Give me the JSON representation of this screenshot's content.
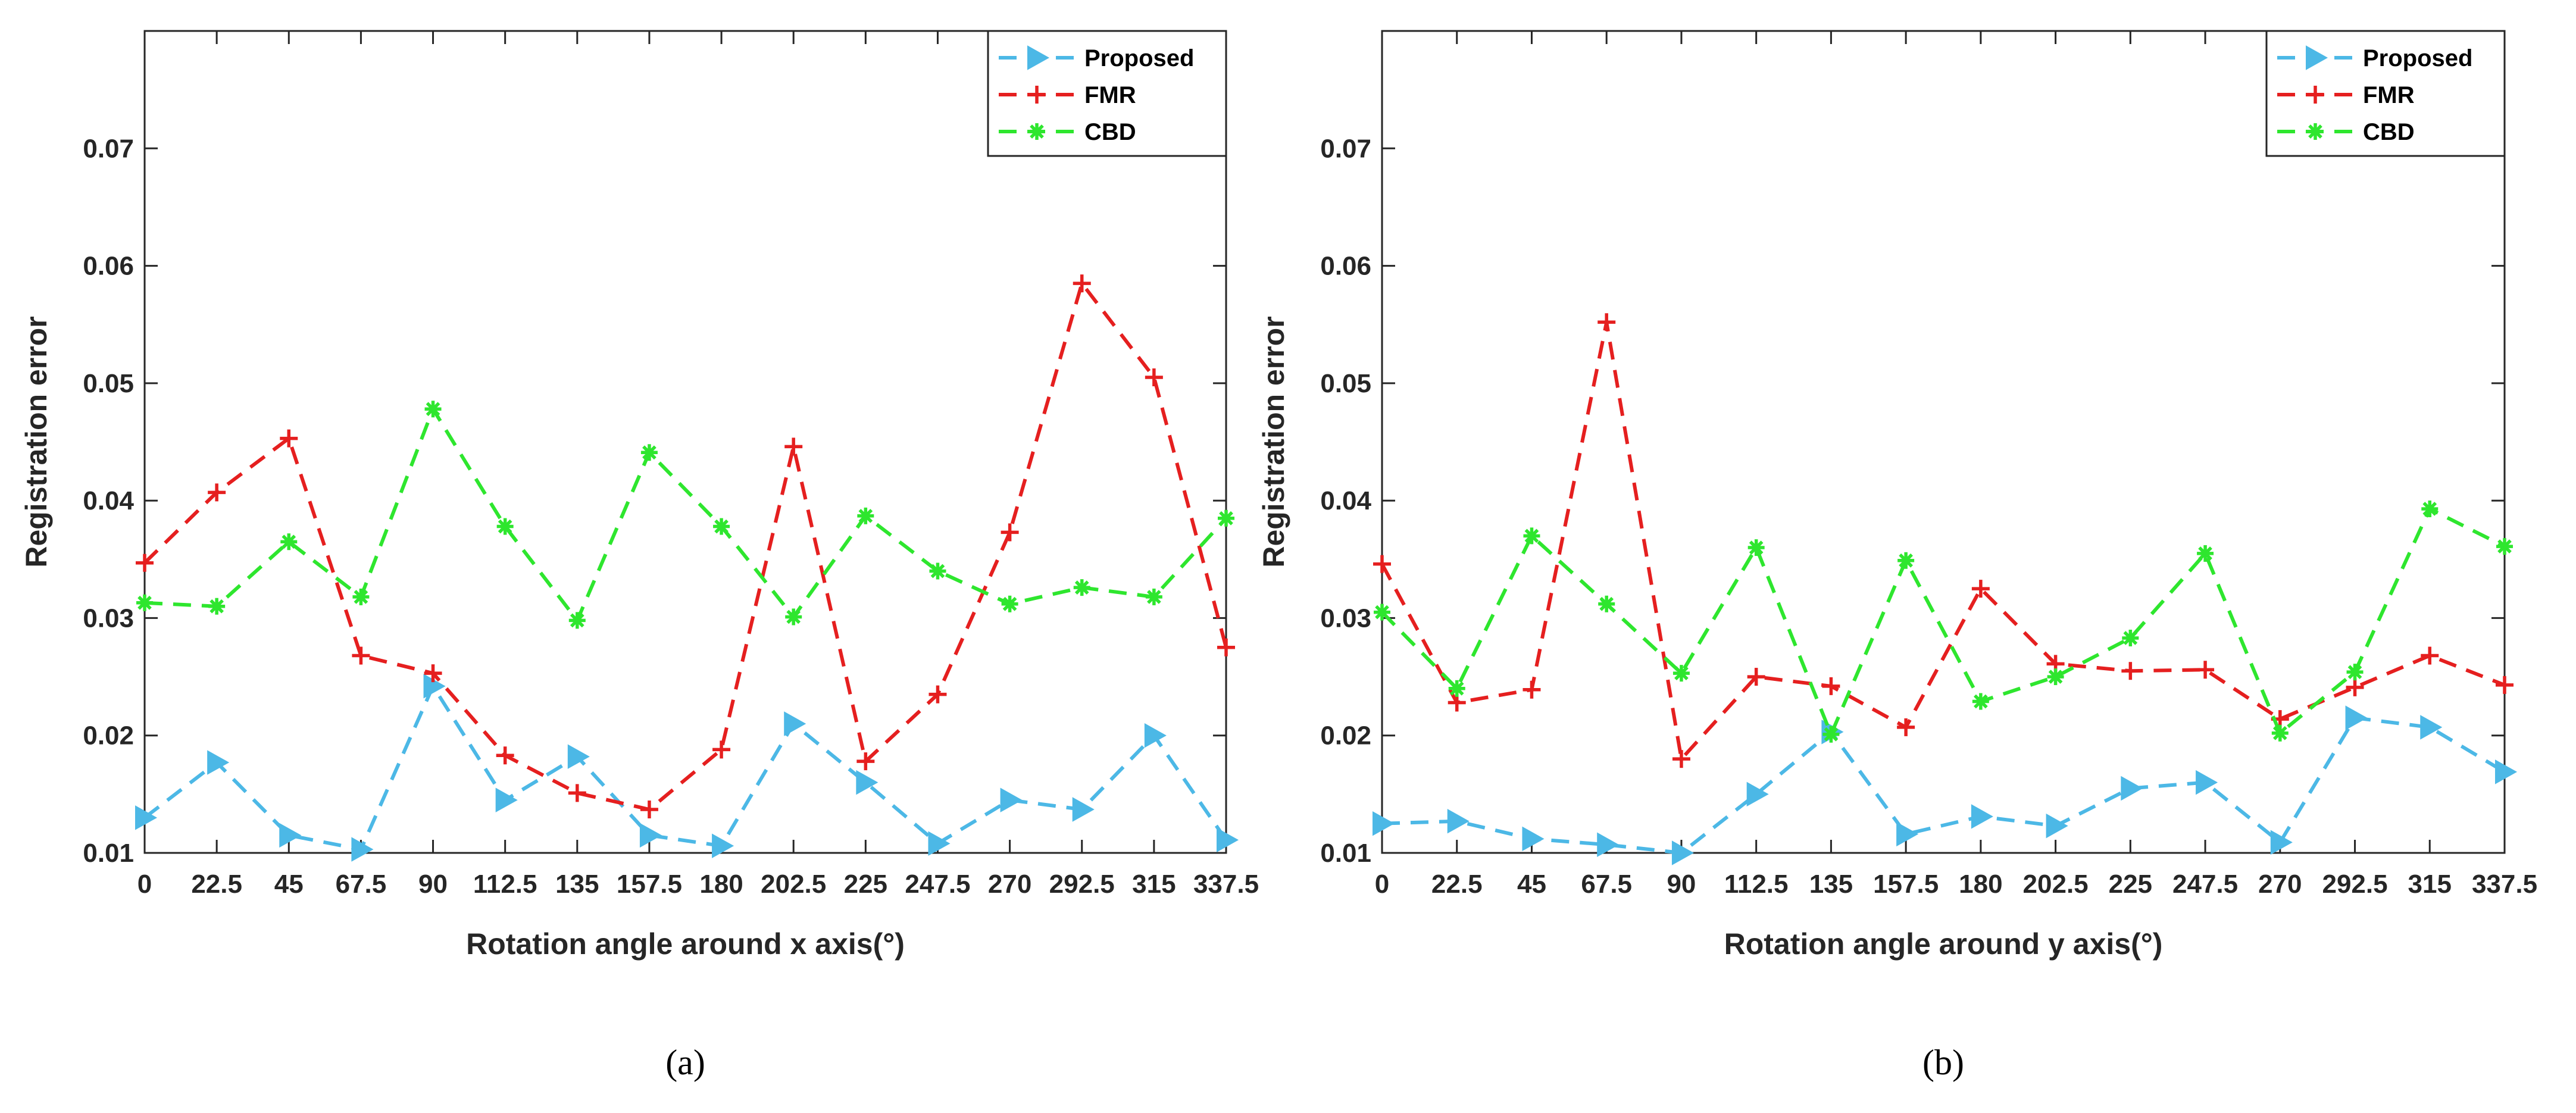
{
  "colors": {
    "proposed": "#4cb8e6",
    "fmr": "#e51f1f",
    "cbd": "#2ee62e",
    "axis": "#262626"
  },
  "chart_data": [
    {
      "type": "line",
      "caption": "(a)",
      "xlabel": "Rotation angle around x axis(°)",
      "ylabel": "Registration error",
      "categories": [
        "0",
        "22.5",
        "45",
        "67.5",
        "90",
        "112.5",
        "135",
        "157.5",
        "180",
        "202.5",
        "225",
        "247.5",
        "270",
        "292.5",
        "315",
        "337.5"
      ],
      "x": [
        0,
        22.5,
        45,
        67.5,
        90,
        112.5,
        135,
        157.5,
        180,
        202.5,
        225,
        247.5,
        270,
        292.5,
        315,
        337.5
      ],
      "xlim": [
        0,
        337.5
      ],
      "ylim": [
        0.01,
        0.08
      ],
      "yticks": [
        "0.01",
        "0.02",
        "0.03",
        "0.04",
        "0.05",
        "0.06",
        "0.07"
      ],
      "legend_position": "top-right",
      "series": [
        {
          "name": "Proposed",
          "marker": "triangle-right",
          "values": [
            0.013,
            0.0177,
            0.0115,
            0.0103,
            0.0242,
            0.0145,
            0.0182,
            0.0115,
            0.0106,
            0.021,
            0.016,
            0.0108,
            0.0145,
            0.0137,
            0.02,
            0.0111
          ]
        },
        {
          "name": "FMR",
          "marker": "plus",
          "values": [
            0.0347,
            0.0407,
            0.0453,
            0.0268,
            0.0253,
            0.0183,
            0.0151,
            0.0137,
            0.0188,
            0.0446,
            0.0178,
            0.0235,
            0.0373,
            0.0585,
            0.0505,
            0.0275
          ]
        },
        {
          "name": "CBD",
          "marker": "star",
          "values": [
            0.0313,
            0.031,
            0.0365,
            0.0318,
            0.0478,
            0.0378,
            0.0298,
            0.0441,
            0.0378,
            0.0301,
            0.0387,
            0.034,
            0.0312,
            0.0326,
            0.0318,
            0.0385
          ]
        }
      ]
    },
    {
      "type": "line",
      "caption": "(b)",
      "xlabel": "Rotation angle around y axis(°)",
      "ylabel": "Registration error",
      "categories": [
        "0",
        "22.5",
        "45",
        "67.5",
        "90",
        "112.5",
        "135",
        "157.5",
        "180",
        "202.5",
        "225",
        "247.5",
        "270",
        "292.5",
        "315",
        "337.5"
      ],
      "x": [
        0,
        22.5,
        45,
        67.5,
        90,
        112.5,
        135,
        157.5,
        180,
        202.5,
        225,
        247.5,
        270,
        292.5,
        315,
        337.5
      ],
      "xlim": [
        0,
        337.5
      ],
      "ylim": [
        0.01,
        0.08
      ],
      "yticks": [
        "0.01",
        "0.02",
        "0.03",
        "0.04",
        "0.05",
        "0.06",
        "0.07"
      ],
      "legend_position": "top-right",
      "series": [
        {
          "name": "Proposed",
          "marker": "triangle-right",
          "values": [
            0.0125,
            0.0127,
            0.0112,
            0.0107,
            0.01,
            0.015,
            0.0203,
            0.0116,
            0.0131,
            0.0123,
            0.0155,
            0.016,
            0.0109,
            0.0215,
            0.0207,
            0.0169
          ]
        },
        {
          "name": "FMR",
          "marker": "plus",
          "values": [
            0.0346,
            0.0228,
            0.0239,
            0.0552,
            0.018,
            0.025,
            0.0242,
            0.0207,
            0.0325,
            0.0261,
            0.0255,
            0.0256,
            0.0214,
            0.0241,
            0.0268,
            0.0243
          ]
        },
        {
          "name": "CBD",
          "marker": "star",
          "values": [
            0.0305,
            0.024,
            0.037,
            0.0312,
            0.0253,
            0.036,
            0.0201,
            0.0349,
            0.0229,
            0.025,
            0.0283,
            0.0355,
            0.0202,
            0.0254,
            0.0393,
            0.0361
          ]
        }
      ]
    }
  ]
}
